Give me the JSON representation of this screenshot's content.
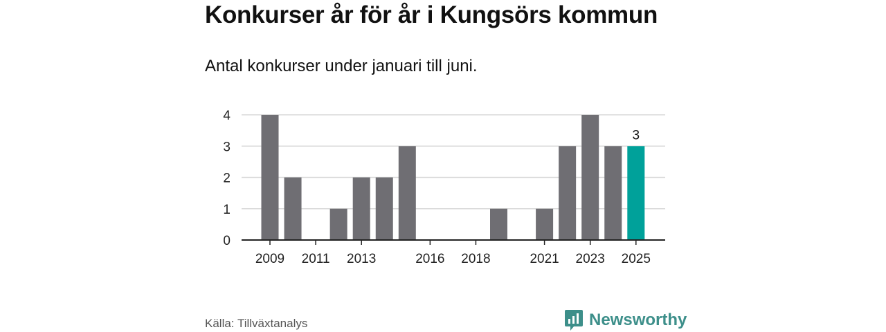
{
  "header": {
    "title": "Konkurser år för år i Kungsörs kommun",
    "subtitle": "Antal konkurser under januari till juni."
  },
  "footer": {
    "source": "Källa: Tillväxtanalys",
    "brand": "Newsworthy",
    "brand_icon": "newsworthy-logo-icon"
  },
  "chart_data": {
    "type": "bar",
    "categories": [
      "2009",
      "2010",
      "2011",
      "2012",
      "2013",
      "2014",
      "2015",
      "2016",
      "2017",
      "2018",
      "2019",
      "2020",
      "2021",
      "2022",
      "2023",
      "2024",
      "2025"
    ],
    "values": [
      4,
      2,
      0,
      1,
      2,
      2,
      3,
      0,
      0,
      0,
      1,
      0,
      1,
      3,
      4,
      3,
      3
    ],
    "x_tick_labels": [
      "2009",
      "2011",
      "2013",
      "2016",
      "2018",
      "2021",
      "2023",
      "2025"
    ],
    "y_ticks": [
      0,
      1,
      2,
      3,
      4
    ],
    "ylim": [
      0,
      4
    ],
    "grid": true,
    "highlight_category": "2025",
    "highlight_label": "3",
    "colors": {
      "bar": "#6f6e73",
      "highlight": "#00a19a",
      "grid": "#d9d9d9",
      "axis": "#222222"
    }
  }
}
